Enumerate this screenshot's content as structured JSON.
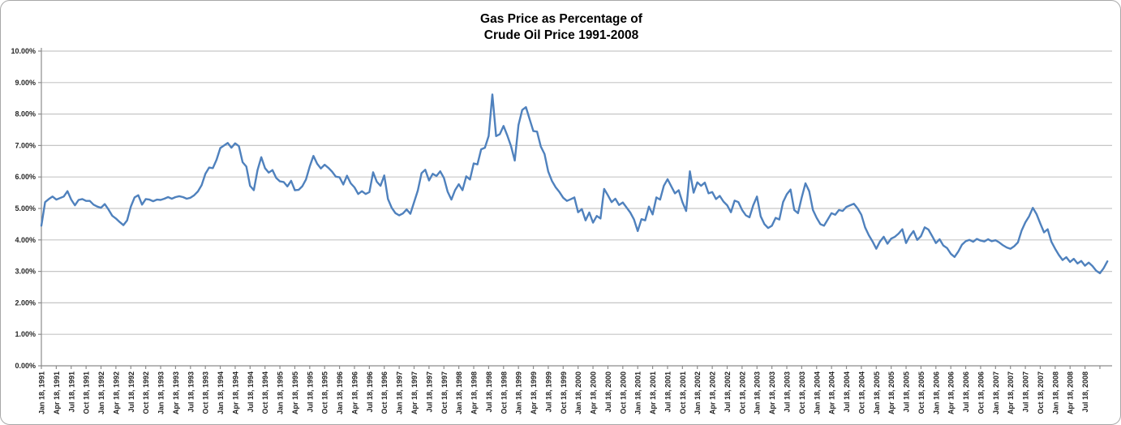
{
  "chart_data": {
    "type": "line",
    "title_lines": [
      "Gas Price as Percentage of",
      "Crude Oil Price 1991-2008"
    ],
    "legend": "none",
    "grid": "horizontal",
    "y_axis": {
      "min": 0,
      "max": 10,
      "step": 1,
      "tick_labels": [
        "0.00%",
        "1.00%",
        "2.00%",
        "3.00%",
        "4.00%",
        "5.00%",
        "6.00%",
        "7.00%",
        "8.00%",
        "9.00%",
        "10.00%"
      ]
    },
    "x_axis": {
      "unit": "quarter-ticks (weekly data series)",
      "t_max": 71.5,
      "tick_labels": [
        "Jan 18, 1991",
        "Apr 18, 1991",
        "Jul 18, 1991",
        "Oct 18, 1991",
        "Jan 18, 1992",
        "Apr 18, 1992",
        "Jul 18, 1992",
        "Oct 18, 1992",
        "Jan 18, 1993",
        "Apr 18, 1993",
        "Jul 18, 1993",
        "Oct 18, 1993",
        "Jan 18, 1994",
        "Apr 18, 1994",
        "Jul 18, 1994",
        "Oct 18, 1994",
        "Jan 18, 1995",
        "Apr 18, 1995",
        "Jul 18, 1995",
        "Oct 18, 1995",
        "Jan 18, 1996",
        "Apr 18, 1996",
        "Jul 18, 1996",
        "Oct 18, 1996",
        "Jan 18, 1997",
        "Apr 18, 1997",
        "Jul 18, 1997",
        "Oct 18, 1997",
        "Jan 18, 1998",
        "Apr 18, 1998",
        "Jul 18, 1998",
        "Oct 18, 1998",
        "Jan 18, 1999",
        "Apr 18, 1999",
        "Jul 18, 1999",
        "Oct 18, 1999",
        "Jan 18, 2000",
        "Apr 18, 2000",
        "Jul 18, 2000",
        "Oct 18, 2000",
        "Jan 18, 2001",
        "Apr 18, 2001",
        "Jul 18, 2001",
        "Oct 18, 2001",
        "Jan 18, 2002",
        "Apr 18, 2002",
        "Jul 18, 2002",
        "Oct 18, 2002",
        "Jan 18, 2003",
        "Apr 18, 2003",
        "Jul 18, 2003",
        "Oct 18, 2003",
        "Jan 18, 2004",
        "Apr 18, 2004",
        "Jul 18, 2004",
        "Oct 18, 2004",
        "Jan 18, 2005",
        "Apr 18, 2005",
        "Jul 18, 2005",
        "Oct 18, 2005",
        "Jan 18, 2006",
        "Apr 18, 2006",
        "Jul 18, 2006",
        "Oct 18, 2006",
        "Jan 18, 2007",
        "Apr 18, 2007",
        "Jul 18, 2007",
        "Oct 18, 2007",
        "Jan 18, 2008",
        "Apr 18, 2008",
        "Jul 18, 2008"
      ]
    },
    "series": [
      {
        "name": "Gas price as percentage of crude oil price",
        "color": "#4F81BD",
        "t_start": 0,
        "t_step": 0.25,
        "values": [
          4.45,
          5.2,
          5.3,
          5.38,
          5.28,
          5.33,
          5.38,
          5.55,
          5.28,
          5.1,
          5.27,
          5.3,
          5.24,
          5.24,
          5.12,
          5.06,
          5.02,
          5.14,
          4.97,
          4.77,
          4.68,
          4.57,
          4.47,
          4.62,
          5.06,
          5.35,
          5.42,
          5.12,
          5.3,
          5.28,
          5.23,
          5.28,
          5.27,
          5.31,
          5.36,
          5.31,
          5.36,
          5.39,
          5.36,
          5.31,
          5.34,
          5.42,
          5.54,
          5.74,
          6.1,
          6.3,
          6.28,
          6.55,
          6.92,
          7.0,
          7.08,
          6.93,
          7.07,
          6.98,
          6.47,
          6.33,
          5.72,
          5.58,
          6.22,
          6.63,
          6.28,
          6.14,
          6.22,
          5.97,
          5.86,
          5.84,
          5.7,
          5.88,
          5.58,
          5.59,
          5.7,
          5.92,
          6.33,
          6.67,
          6.42,
          6.27,
          6.39,
          6.29,
          6.17,
          6.01,
          5.99,
          5.76,
          6.04,
          5.8,
          5.67,
          5.46,
          5.55,
          5.46,
          5.52,
          6.15,
          5.85,
          5.72,
          6.05,
          5.3,
          5.02,
          4.85,
          4.78,
          4.84,
          4.97,
          4.83,
          5.2,
          5.57,
          6.12,
          6.23,
          5.89,
          6.1,
          6.03,
          6.18,
          5.97,
          5.53,
          5.28,
          5.58,
          5.77,
          5.58,
          6.02,
          5.92,
          6.43,
          6.4,
          6.88,
          6.93,
          7.3,
          8.62,
          7.3,
          7.36,
          7.62,
          7.32,
          6.98,
          6.52,
          7.65,
          8.13,
          8.22,
          7.84,
          7.46,
          7.44,
          6.97,
          6.73,
          6.17,
          5.87,
          5.67,
          5.52,
          5.34,
          5.24,
          5.29,
          5.35,
          4.88,
          4.98,
          4.62,
          4.87,
          4.55,
          4.76,
          4.68,
          5.62,
          5.42,
          5.2,
          5.31,
          5.11,
          5.19,
          5.03,
          4.87,
          4.65,
          4.28,
          4.66,
          4.62,
          5.06,
          4.81,
          5.35,
          5.28,
          5.72,
          5.93,
          5.7,
          5.48,
          5.58,
          5.2,
          4.92,
          6.18,
          5.5,
          5.83,
          5.72,
          5.82,
          5.48,
          5.52,
          5.3,
          5.4,
          5.22,
          5.1,
          4.88,
          5.25,
          5.2,
          4.95,
          4.78,
          4.72,
          5.1,
          5.38,
          4.75,
          4.5,
          4.38,
          4.45,
          4.7,
          4.65,
          5.2,
          5.45,
          5.6,
          4.95,
          4.85,
          5.35,
          5.8,
          5.55,
          4.95,
          4.7,
          4.5,
          4.45,
          4.65,
          4.85,
          4.8,
          4.95,
          4.92,
          5.05,
          5.1,
          5.15,
          5.0,
          4.8,
          4.4,
          4.15,
          3.95,
          3.72,
          3.95,
          4.1,
          3.88,
          4.04,
          4.1,
          4.2,
          4.34,
          3.9,
          4.12,
          4.28,
          4.0,
          4.12,
          4.4,
          4.33,
          4.12,
          3.9,
          4.02,
          3.82,
          3.74,
          3.56,
          3.46,
          3.63,
          3.85,
          3.96,
          4.0,
          3.94,
          4.03,
          3.98,
          3.95,
          4.02,
          3.96,
          3.99,
          3.92,
          3.83,
          3.76,
          3.72,
          3.8,
          3.92,
          4.3,
          4.56,
          4.75,
          5.02,
          4.82,
          4.52,
          4.24,
          4.34,
          3.94,
          3.72,
          3.52,
          3.36,
          3.45,
          3.3,
          3.4,
          3.25,
          3.33,
          3.18,
          3.28,
          3.17,
          3.02,
          2.94,
          3.1,
          3.32
        ]
      }
    ]
  },
  "style": {
    "series_color": "#4F81BD",
    "gridline_color": "#C6C6C6",
    "axis_color": "#8C8C8C",
    "tick_label_color": "#262626",
    "title_color": "#000000",
    "background_color": "#FFFFFF",
    "frame_border_color": "#A8A8A8"
  }
}
